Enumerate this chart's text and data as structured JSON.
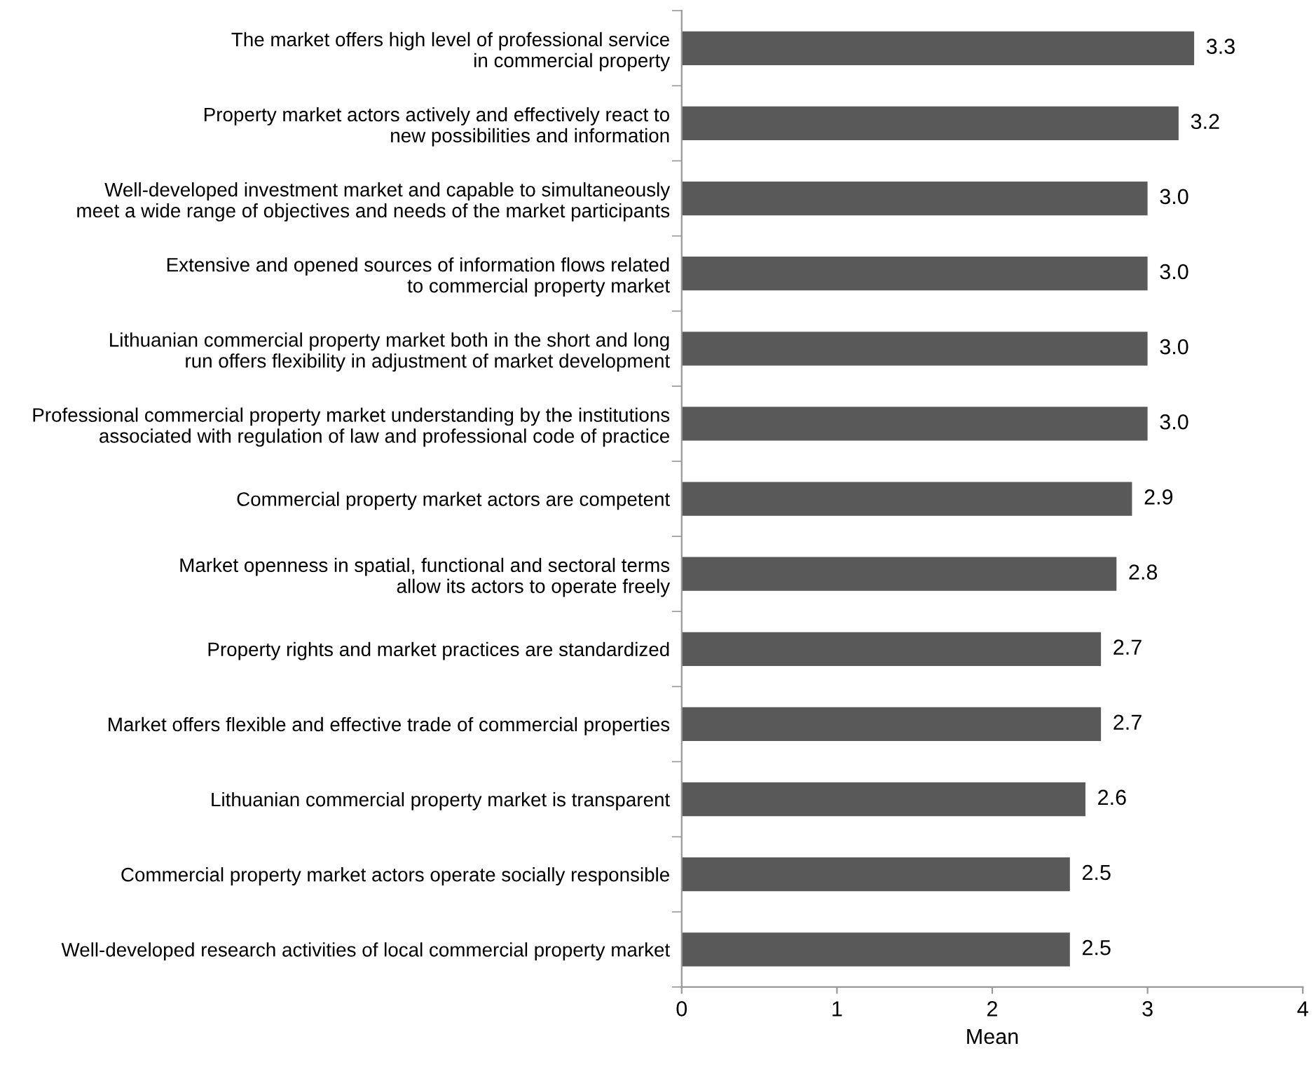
{
  "chart_data": {
    "type": "bar",
    "orientation": "horizontal",
    "xlabel": "Mean",
    "categories": [
      "The market offers high level of professional service\nin commercial property",
      "Property market actors actively and effectively react to\nnew possibilities and information",
      "Well-developed investment market and capable to simultaneously\nmeet a wide range of objectives and needs of the market participants",
      "Extensive and opened sources of information flows related\nto commercial property market",
      "Lithuanian commercial property market both in the short and long\nrun offers flexibility in adjustment of market development",
      "Professional commercial property market understanding by the institutions\nassociated with regulation of law and professional code of practice",
      "Commercial property market actors are competent",
      "Market openness in spatial, functional and sectoral terms\nallow its actors to operate freely",
      "Property rights and market practices are standardized",
      "Market offers flexible and effective trade of commercial properties",
      "Lithuanian commercial property market is transparent",
      "Commercial property market actors operate socially responsible",
      "Well-developed research activities of local commercial property market"
    ],
    "values": [
      3.3,
      3.2,
      3.0,
      3.0,
      3.0,
      3.0,
      2.9,
      2.8,
      2.7,
      2.7,
      2.6,
      2.5,
      2.5
    ],
    "value_labels": [
      "3.3",
      "3.2",
      "3.0",
      "3.0",
      "3.0",
      "3.0",
      "2.9",
      "2.8",
      "2.7",
      "2.7",
      "2.6",
      "2.5",
      "2.5"
    ],
    "color": "#595959",
    "xlim": [
      0,
      4
    ],
    "xticks": [
      0,
      1,
      2,
      3,
      4
    ],
    "grid": false,
    "legend": false
  }
}
